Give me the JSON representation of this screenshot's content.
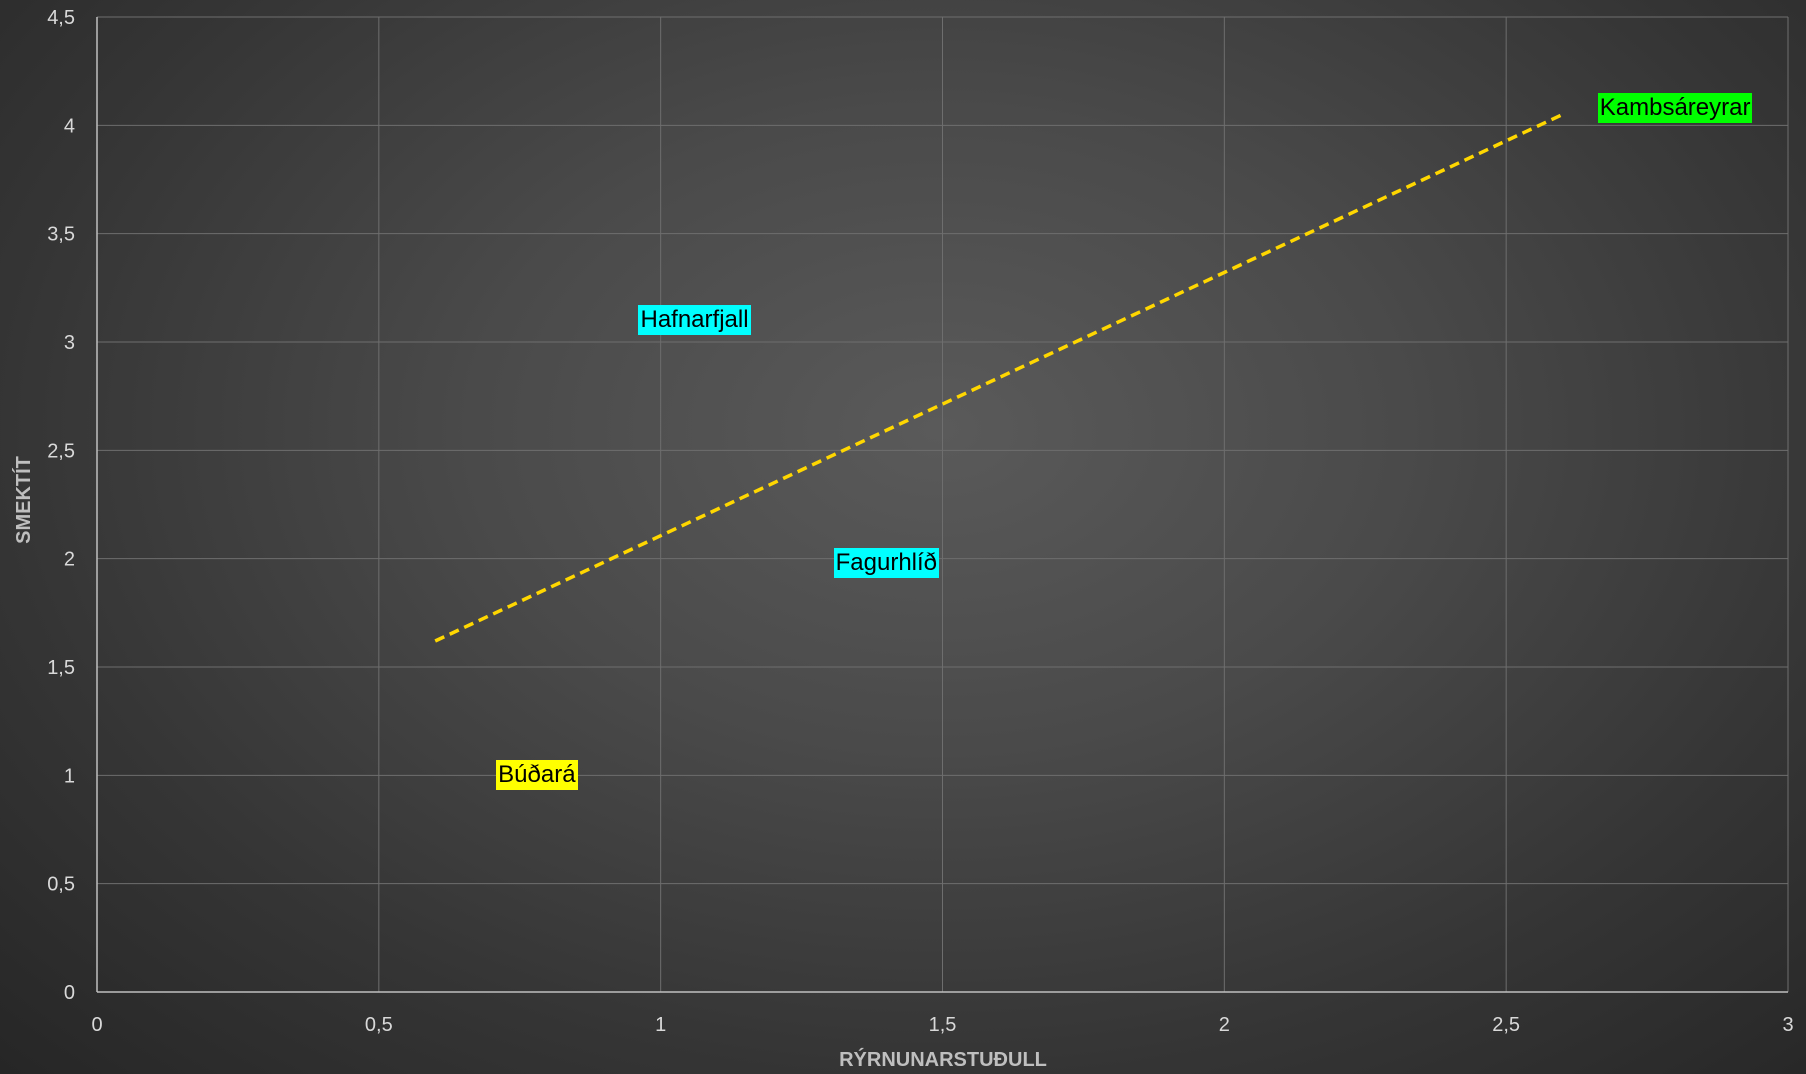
{
  "chart_data": {
    "type": "scatter",
    "xlabel": "RÝRNUNARSTUÐULL",
    "ylabel": "SMEKTÍT",
    "xlim": [
      0,
      3
    ],
    "ylim": [
      0,
      4.5
    ],
    "x_ticks": [
      "0",
      "0,5",
      "1",
      "1,5",
      "2",
      "2,5",
      "3"
    ],
    "y_ticks": [
      "0",
      "0,5",
      "1",
      "1,5",
      "2",
      "2,5",
      "3",
      "3,5",
      "4",
      "4,5"
    ],
    "grid": true,
    "points": [
      {
        "label": "Búðará",
        "x": 0.78,
        "y": 1.0,
        "color": "#ffff00"
      },
      {
        "label": "Hafnarfjall",
        "x": 1.06,
        "y": 3.1,
        "color": "#00ffff"
      },
      {
        "label": "Fagurhlíð",
        "x": 1.4,
        "y": 1.98,
        "color": "#00ffff"
      },
      {
        "label": "Kambsáreyrar",
        "x": 2.8,
        "y": 4.08,
        "color": "#00ff00"
      }
    ],
    "trendline": {
      "style": "dashed",
      "color": "#ffd700",
      "x": [
        0.6,
        2.6
      ],
      "y": [
        1.62,
        4.05
      ]
    }
  }
}
